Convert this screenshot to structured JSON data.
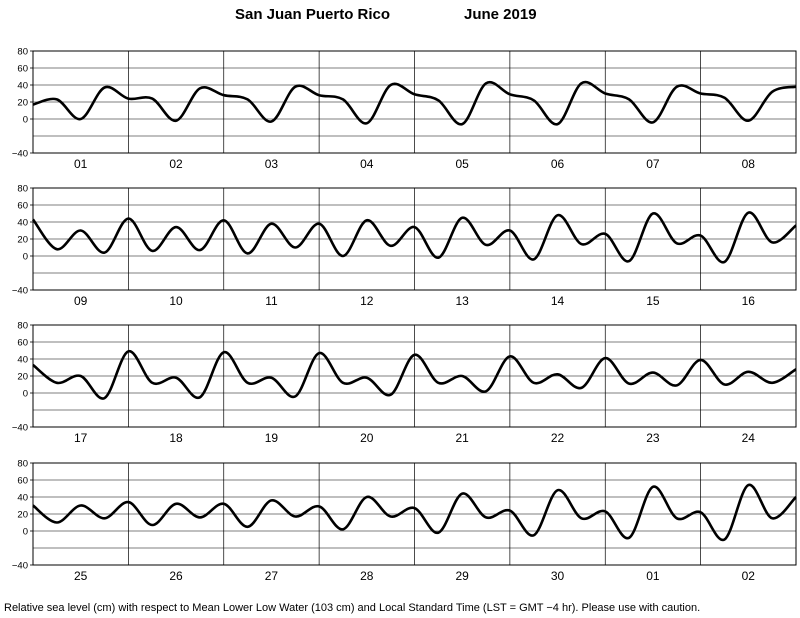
{
  "header": {
    "station": "San Juan Puerto Rico",
    "month_year": "June   2019"
  },
  "footer": {
    "note": "Relative sea level (cm) with respect to Mean Lower Low Water (103 cm) and Local Standard Time (LST = GMT −4 hr). Please use with caution."
  },
  "chart_data": [
    {
      "type": "line",
      "ylim": [
        -40,
        80
      ],
      "yticks": [
        "80",
        "60",
        "40",
        "20",
        "0",
        "−40"
      ],
      "day_labels": [
        "01",
        "02",
        "03",
        "04",
        "05",
        "06",
        "07",
        "08"
      ],
      "grid": true,
      "series": [
        {
          "x_days": [
            0,
            0.25,
            0.5,
            0.75,
            1,
            1.25,
            1.5,
            1.75,
            2,
            2.25,
            2.5,
            2.75,
            3,
            3.25,
            3.5,
            3.75,
            4,
            4.25,
            4.5,
            4.75,
            5,
            5.25,
            5.5,
            5.75,
            6,
            6.25,
            6.5,
            6.75,
            7,
            7.25,
            7.5,
            7.75,
            8
          ],
          "values": [
            17,
            23,
            0,
            37,
            24,
            24,
            -2,
            36,
            28,
            23,
            -3,
            38,
            28,
            23,
            -5,
            40,
            29,
            22,
            -6,
            42,
            29,
            22,
            -6,
            42,
            30,
            23,
            -4,
            38,
            30,
            25,
            -2,
            32,
            38
          ]
        }
      ]
    },
    {
      "type": "line",
      "ylim": [
        -40,
        80
      ],
      "yticks": [
        "80",
        "60",
        "40",
        "20",
        "0",
        "−40"
      ],
      "day_labels": [
        "09",
        "10",
        "11",
        "12",
        "13",
        "14",
        "15",
        "16"
      ],
      "grid": true,
      "series": [
        {
          "x_days": [
            0,
            0.25,
            0.5,
            0.75,
            1,
            1.25,
            1.5,
            1.75,
            2,
            2.25,
            2.5,
            2.75,
            3,
            3.25,
            3.5,
            3.75,
            4,
            4.25,
            4.5,
            4.75,
            5,
            5.25,
            5.5,
            5.75,
            6,
            6.25,
            6.5,
            6.75,
            7,
            7.25,
            7.5,
            7.75,
            8
          ],
          "values": [
            43,
            8,
            30,
            4,
            44,
            6,
            34,
            7,
            42,
            3,
            38,
            10,
            38,
            0,
            42,
            12,
            34,
            -2,
            45,
            13,
            30,
            -4,
            48,
            14,
            26,
            -6,
            50,
            15,
            24,
            -7,
            51,
            16,
            36
          ]
        }
      ]
    },
    {
      "type": "line",
      "ylim": [
        -40,
        80
      ],
      "yticks": [
        "80",
        "60",
        "40",
        "20",
        "0",
        "−40"
      ],
      "day_labels": [
        "17",
        "18",
        "19",
        "20",
        "21",
        "22",
        "23",
        "24"
      ],
      "grid": true,
      "series": [
        {
          "x_days": [
            0,
            0.25,
            0.5,
            0.75,
            1,
            1.25,
            1.5,
            1.75,
            2,
            2.25,
            2.5,
            2.75,
            3,
            3.25,
            3.5,
            3.75,
            4,
            4.25,
            4.5,
            4.75,
            5,
            5.25,
            5.5,
            5.75,
            6,
            6.25,
            6.5,
            6.75,
            7,
            7.25,
            7.5,
            7.75,
            8
          ],
          "values": [
            33,
            12,
            20,
            -6,
            49,
            12,
            18,
            -5,
            48,
            12,
            18,
            -4,
            47,
            12,
            18,
            -2,
            45,
            12,
            20,
            2,
            43,
            12,
            22,
            6,
            41,
            11,
            24,
            9,
            39,
            10,
            25,
            12,
            28
          ]
        }
      ]
    },
    {
      "type": "line",
      "ylim": [
        -40,
        80
      ],
      "yticks": [
        "80",
        "60",
        "40",
        "20",
        "0",
        "−40"
      ],
      "day_labels": [
        "25",
        "26",
        "27",
        "28",
        "29",
        "30",
        "01",
        "02"
      ],
      "grid": true,
      "series": [
        {
          "x_days": [
            0,
            0.25,
            0.5,
            0.75,
            1,
            1.25,
            1.5,
            1.75,
            2,
            2.25,
            2.5,
            2.75,
            3,
            3.25,
            3.5,
            3.75,
            4,
            4.25,
            4.5,
            4.75,
            5,
            5.25,
            5.5,
            5.75,
            6,
            6.25,
            6.5,
            6.75,
            7,
            7.25,
            7.5,
            7.75,
            8
          ],
          "values": [
            30,
            10,
            30,
            15,
            34,
            7,
            32,
            16,
            32,
            5,
            36,
            17,
            29,
            2,
            40,
            17,
            27,
            -2,
            44,
            16,
            24,
            -5,
            48,
            15,
            23,
            -8,
            52,
            15,
            22,
            -10,
            54,
            15,
            40
          ]
        }
      ]
    }
  ]
}
